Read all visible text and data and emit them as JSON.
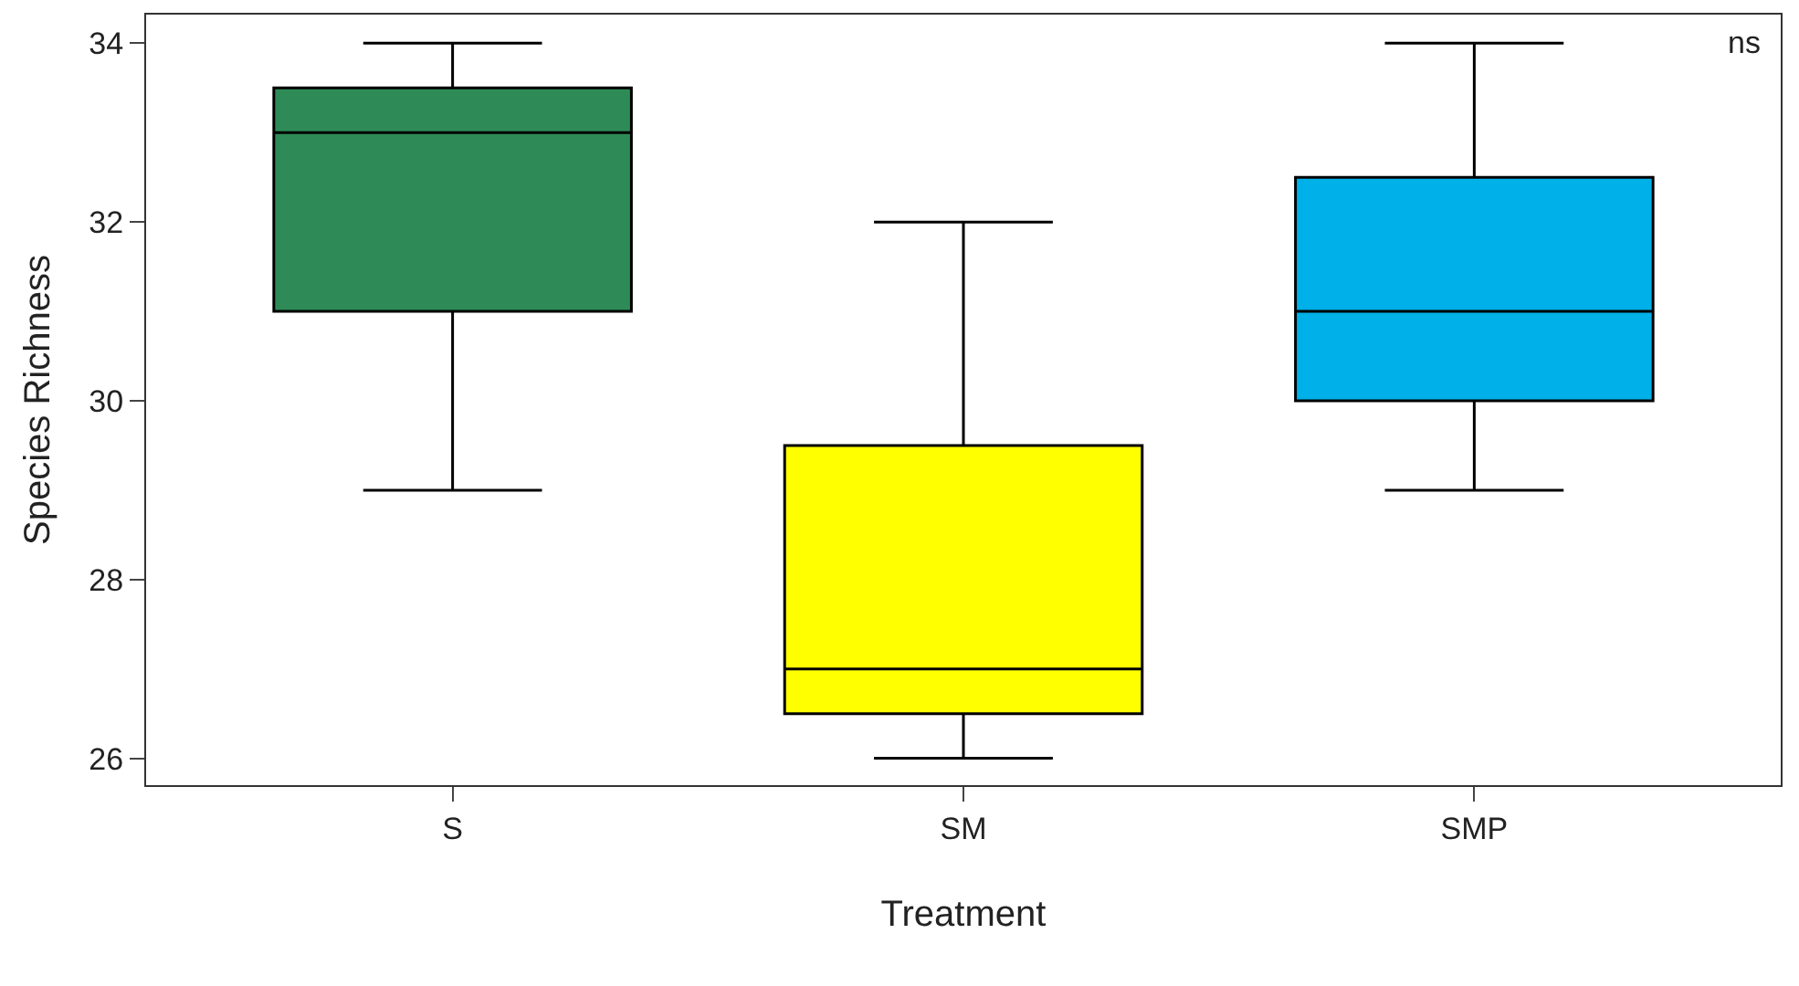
{
  "chart_data": {
    "type": "box",
    "xlabel": "Treatment",
    "ylabel": "Species Richness",
    "categories": [
      "S",
      "SM",
      "SMP"
    ],
    "colors": [
      "#2e8b57",
      "#ffff00",
      "#00b0e8"
    ],
    "boxes": [
      {
        "low": 29,
        "q1": 31,
        "median": 33,
        "q3": 33.5,
        "high": 34
      },
      {
        "low": 26,
        "q1": 26.5,
        "median": 27,
        "q3": 29.5,
        "high": 32
      },
      {
        "low": 29,
        "q1": 30,
        "median": 31,
        "q3": 32.5,
        "high": 34
      }
    ],
    "ylim": [
      25.7,
      34.32
    ],
    "yticks": [
      26,
      28,
      30,
      32,
      34
    ],
    "annotations": [
      "ns"
    ]
  }
}
